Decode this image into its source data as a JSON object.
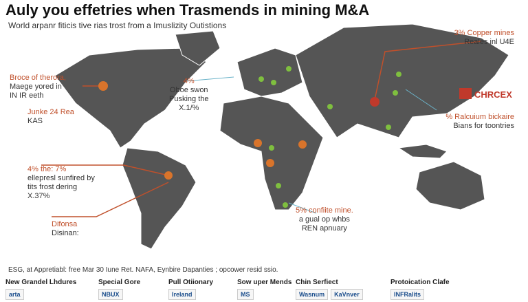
{
  "header": {
    "title": "Auly you effetries when Trasmends in mining M&A",
    "subtitle": "World arpanr fiticis tive rias trost from a Imuslizity Outistions"
  },
  "annotations": [
    {
      "lines": [
        "Broce of therora,",
        "Maege yored in",
        "IN IR eeth"
      ]
    },
    {
      "lines": [
        "Junke 24 Rea",
        "KAS"
      ]
    },
    {
      "lines": [
        "4% the: 7%",
        "ellepresl sunfired by",
        "tits frost dering",
        "X.37%"
      ]
    },
    {
      "lines": [
        "Difonsa",
        "Disinan:"
      ]
    },
    {
      "lines": [
        "4%",
        "Oboe swon",
        "Pusking the",
        "X.1/%"
      ]
    },
    {
      "lines": [
        "3% Copper mines",
        "Reales inl U4E"
      ]
    },
    {
      "lines": [
        "% Ralcuium bickaire",
        "Bians for toontries"
      ]
    },
    {
      "lines": [
        "5% confiite mine.",
        "a gual op whbs",
        "REN apnuary"
      ]
    }
  ],
  "brand": "CHRCEX",
  "footnote": "ESG, at Appretiabl: free Mar 30 Iune Ret. NAFA, Eynbire Dapanties ; opcower resid ssio.",
  "partners": [
    {
      "heading": "New Grandel Lhdures",
      "logos": [
        "arta"
      ]
    },
    {
      "heading": "Special Gore",
      "logos": [
        "NBUX"
      ]
    },
    {
      "heading": "Pull Otiionary",
      "logos": [
        "Ireland"
      ]
    },
    {
      "heading": "Sow uper Mends",
      "logos": [
        "MS"
      ]
    },
    {
      "heading": "Chin Serfiect",
      "logos": [
        "Wasnum",
        "KaVnver"
      ]
    },
    {
      "heading": "Protoication Clafe",
      "logos": [
        "INFRalits"
      ]
    }
  ]
}
